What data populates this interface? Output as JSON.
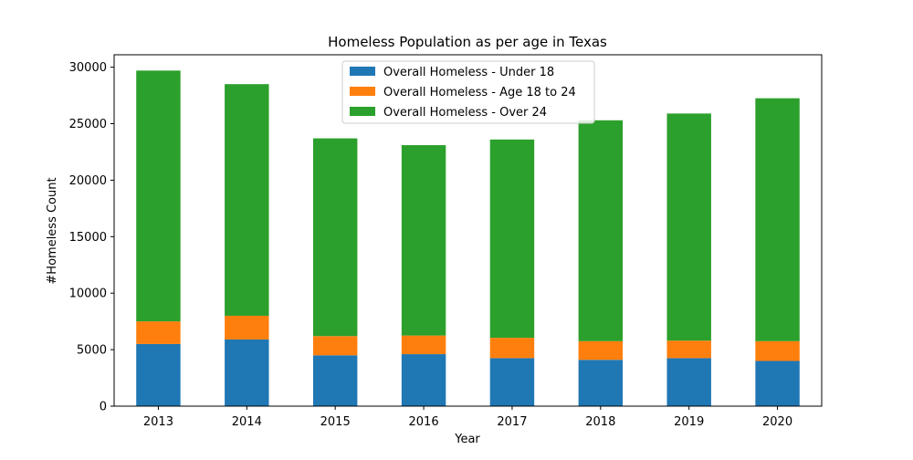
{
  "chart_data": {
    "type": "bar",
    "stacked": true,
    "title": "Homeless Population as per age in Texas",
    "xlabel": "Year",
    "ylabel": "#Homeless Count",
    "categories": [
      "2013",
      "2014",
      "2015",
      "2016",
      "2017",
      "2018",
      "2019",
      "2020"
    ],
    "ylim": [
      0,
      30000
    ],
    "yticks": [
      "0",
      "5000",
      "10000",
      "15000",
      "20000",
      "25000",
      "30000"
    ],
    "grid": false,
    "legend_position": "top-center",
    "series": [
      {
        "name": "Overall Homeless - Under 18",
        "color": "#1f77b4",
        "values": [
          5500,
          5900,
          4500,
          4600,
          4250,
          4100,
          4250,
          4000
        ]
      },
      {
        "name": "Overall Homeless - Age 18 to 24",
        "color": "#ff7f0e",
        "values": [
          2000,
          2100,
          1700,
          1650,
          1800,
          1650,
          1550,
          1750
        ]
      },
      {
        "name": "Overall Homeless - Over 24",
        "color": "#2ca02c",
        "values": [
          22200,
          20500,
          17500,
          16850,
          17550,
          19550,
          20100,
          21500
        ]
      }
    ]
  }
}
